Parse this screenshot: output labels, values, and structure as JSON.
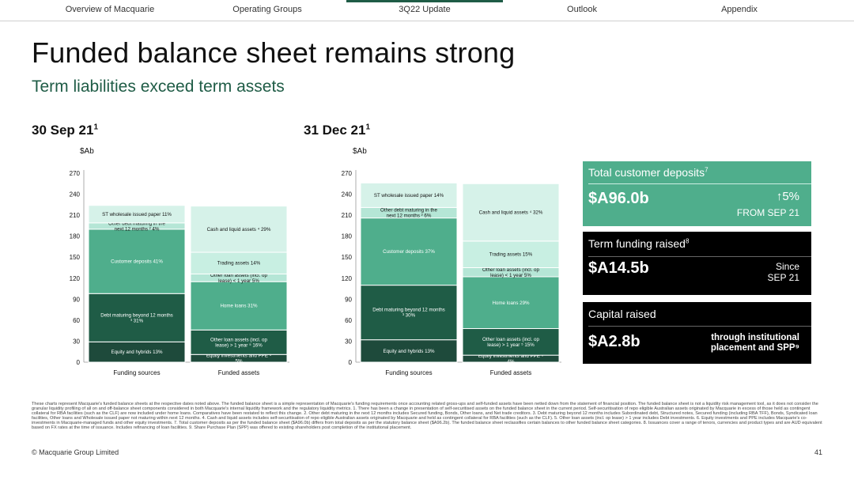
{
  "nav": {
    "items": [
      "Overview of Macquarie",
      "Operating Groups",
      "3Q22 Update",
      "Outlook",
      "Appendix"
    ],
    "active": "3Q22 Update"
  },
  "title": "Funded balance sheet remains strong",
  "subtitle": "Term liabilities exceed term assets",
  "chart_data": [
    {
      "type": "bar",
      "stacked": true,
      "title": "30 Sep 21",
      "title_sup": "1",
      "ylabel": "$Ab",
      "ylim": [
        0,
        270
      ],
      "yticks": [
        0,
        30,
        60,
        90,
        120,
        150,
        180,
        210,
        240,
        270
      ],
      "categories": [
        "Funding sources",
        "Funded assets"
      ],
      "stacks": [
        {
          "category": "Funding sources",
          "segments": [
            {
              "label": "Equity and hybrids 13%",
              "value": 29,
              "color": "#1e4a3b"
            },
            {
              "label": "Debt maturing beyond 12 months ³ 31%",
              "value": 69,
              "color": "#1f5c46"
            },
            {
              "label": "Customer deposits 41%",
              "value": 92,
              "color": "#4fae8c"
            },
            {
              "label": "Other debt maturing in the next 12 months ² 4%",
              "value": 9,
              "color": "#b5e6d6"
            },
            {
              "label": "ST wholesale issued paper 11%",
              "value": 25,
              "color": "#d6f2e9"
            }
          ]
        },
        {
          "category": "Funded assets",
          "segments": [
            {
              "label": "Equity investments and PPE ⁶ 5%",
              "value": 11,
              "color": "#1e4a3b"
            },
            {
              "label": "Other loan assets (incl. op lease) > 1 year ⁵ 16%",
              "value": 35,
              "color": "#1f5c46"
            },
            {
              "label": "Home loans 31%",
              "value": 69,
              "color": "#4fae8c"
            },
            {
              "label": "Other loan assets (incl. op lease) < 1 year 5%",
              "value": 11,
              "color": "#b5e6d6"
            },
            {
              "label": "Trading assets 14%",
              "value": 31,
              "color": "#c8efe2"
            },
            {
              "label": "Cash and liquid assets ⁴ 29%",
              "value": 66,
              "color": "#d6f2e9"
            }
          ]
        }
      ]
    },
    {
      "type": "bar",
      "stacked": true,
      "title": "31 Dec 21",
      "title_sup": "1",
      "ylabel": "$Ab",
      "ylim": [
        0,
        270
      ],
      "yticks": [
        0,
        30,
        60,
        90,
        120,
        150,
        180,
        210,
        240,
        270
      ],
      "categories": [
        "Funding sources",
        "Funded assets"
      ],
      "stacks": [
        {
          "category": "Funding sources",
          "segments": [
            {
              "label": "Equity and hybrids 13%",
              "value": 32,
              "color": "#1e4a3b"
            },
            {
              "label": "Debt maturing beyond 12 months ³ 30%",
              "value": 78,
              "color": "#1f5c46"
            },
            {
              "label": "Customer deposits 37%",
              "value": 96,
              "color": "#4fae8c"
            },
            {
              "label": "Other debt maturing in the next 12 months ² 6%",
              "value": 15,
              "color": "#b5e6d6"
            },
            {
              "label": "ST wholesale issued paper 14%",
              "value": 35,
              "color": "#d6f2e9"
            }
          ]
        },
        {
          "category": "Funded assets",
          "segments": [
            {
              "label": "Equity investments and PPE ⁶ 4%",
              "value": 10,
              "color": "#1e4a3b"
            },
            {
              "label": "Other loan assets (incl. op lease) > 1 year ⁵ 15%",
              "value": 38,
              "color": "#1f5c46"
            },
            {
              "label": "Home loans 29%",
              "value": 74,
              "color": "#4fae8c"
            },
            {
              "label": "Other loan assets (incl. op lease) < 1 year 5%",
              "value": 13,
              "color": "#b5e6d6"
            },
            {
              "label": "Trading assets 15%",
              "value": 38,
              "color": "#c8efe2"
            },
            {
              "label": "Cash and liquid assets ⁴ 32%",
              "value": 82,
              "color": "#d6f2e9"
            }
          ]
        }
      ]
    }
  ],
  "cards": {
    "deposits": {
      "label": "Total customer deposits",
      "label_sup": "7",
      "value": "$A96.0b",
      "change_arrow": "↑",
      "change": "5%",
      "change_note": "FROM SEP 21",
      "bg": "#4fae8c"
    },
    "term_funding": {
      "label": "Term funding raised",
      "label_sup": "8",
      "value": "$A14.5b",
      "note_line1": "Since",
      "note_line2": "SEP 21",
      "bg": "#000000"
    },
    "capital": {
      "label": "Capital raised",
      "value": "$A2.8b",
      "note_line1": "through institutional",
      "note_line2": "placement and SPP⁹",
      "bg": "#000000"
    }
  },
  "footnotes": "These charts represent Macquarie's funded balance sheets at the respective dates noted above. The funded balance sheet is a simple representation of Macquarie's funding requirements once accounting related gross-ups and self-funded assets have been netted down from the statement of financial position. The funded balance sheet is not a liquidity risk management tool, as it does not consider the granular liquidity profiling of all on and off-balance sheet components considered in both Macquarie's internal liquidity framework and the regulatory liquidity metrics. 1. There has been a change in presentation of self-securitised assets on the funded balance sheet in the current period. Self-securitisation of repo eligible Australian assets originated by Macquarie in excess of those held as contingent collateral for RBA facilities (such as the CLF) are now included under home loans. Comparatives have been restated to reflect this change. 2. Other debt maturing in the next 12 months includes Secured funding, Bonds, Other loans, and Net trade creditors. 3. Debt maturing beyond 12 months includes Subordinated debt, Structured notes, Secured funding (including RBA TFF), Bonds, Syndicated loan facilities, Other loans and Wholesale issued paper not maturing within next 12 months. 4. Cash and liquid assets includes self-securitisation of repo eligible Australian assets originated by Macquarie and held as contingent collateral for RBA facilities (such as the CLF). 5. Other loan assets (incl. op lease) > 1 year includes Debt investments. 6. Equity investments and PPE includes Macquarie's co-investments in Macquarie-managed funds and other equity investments. 7. Total customer deposits as per the funded balance sheet ($A96.0b) differs from total deposits as per the statutory balance sheet ($A96.2b). The funded balance sheet reclassifies certain balances to other funded balance sheet categories. 8. Issuances cover a range of tenors, currencies and product types and are AUD equivalent based on FX rates at the time of issuance. Includes refinancing of loan facilities. 9. Share Purchase Plan (SPP) was offered to existing shareholders post completion of the institutional placement.",
  "copyright": "© Macquarie Group Limited",
  "page_number": "41"
}
